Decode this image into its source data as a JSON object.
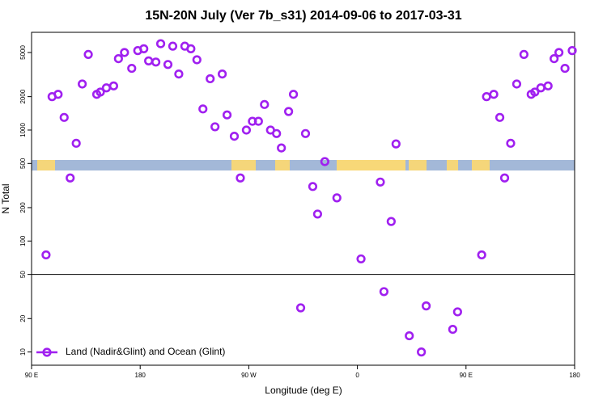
{
  "chart_data": {
    "type": "scatter",
    "title": "15N-20N July (Ver 7b_s31)   2014-09-06 to 2017-03-31",
    "x_label": "Longitude (deg E)",
    "y_label": "N Total",
    "xlim": [
      90,
      540
    ],
    "xticks": [
      {
        "value": 90,
        "label": "90 E"
      },
      {
        "value": 180,
        "label": "180"
      },
      {
        "value": 270,
        "label": "90 W"
      },
      {
        "value": 360,
        "label": "0"
      },
      {
        "value": 450,
        "label": "90 E"
      },
      {
        "value": 540,
        "label": "180"
      }
    ],
    "ylim": [
      7.6,
      7600
    ],
    "yticks": [
      10,
      20,
      50,
      100,
      200,
      500,
      1000,
      2000,
      5000
    ],
    "log_y": true,
    "reference_line": 50,
    "legend": "bottom left",
    "x": [
      102,
      107,
      112,
      117,
      122,
      127,
      132,
      137,
      144,
      147,
      152,
      158,
      162,
      167,
      173,
      178,
      183,
      187,
      193,
      197,
      203,
      207,
      212,
      217,
      222,
      227,
      232,
      238,
      242,
      248,
      252,
      258,
      263,
      268,
      273,
      278,
      283,
      288,
      293,
      297,
      303,
      307,
      313,
      317,
      323,
      327,
      333,
      343,
      363,
      379,
      382,
      388,
      392,
      403,
      413,
      417,
      439,
      443,
      463,
      467,
      473,
      478,
      482,
      487,
      492,
      498,
      504,
      507,
      512,
      518,
      523,
      527,
      532,
      538
    ],
    "series": [
      {
        "name": "Land (Nadir&Glint) and Ocean (Glint)",
        "color": "#a020f0",
        "values": [
          75,
          2000,
          2100,
          1300,
          370,
          760,
          2600,
          4800,
          2100,
          2200,
          2400,
          2500,
          4400,
          5000,
          3600,
          5200,
          5400,
          4200,
          4100,
          6000,
          3900,
          5700,
          3200,
          5700,
          5400,
          4300,
          1550,
          2900,
          1070,
          3200,
          1370,
          880,
          370,
          1000,
          1200,
          1200,
          1700,
          1000,
          930,
          690,
          1470,
          2100,
          25,
          930,
          310,
          175,
          520,
          245,
          69,
          340,
          35,
          150,
          750,
          14,
          10,
          26,
          16,
          23,
          75,
          2000,
          2100,
          1300,
          370,
          760,
          2600,
          4800,
          2100,
          2200,
          2400,
          2500,
          4400,
          5000,
          3600,
          5200
        ]
      }
    ]
  }
}
